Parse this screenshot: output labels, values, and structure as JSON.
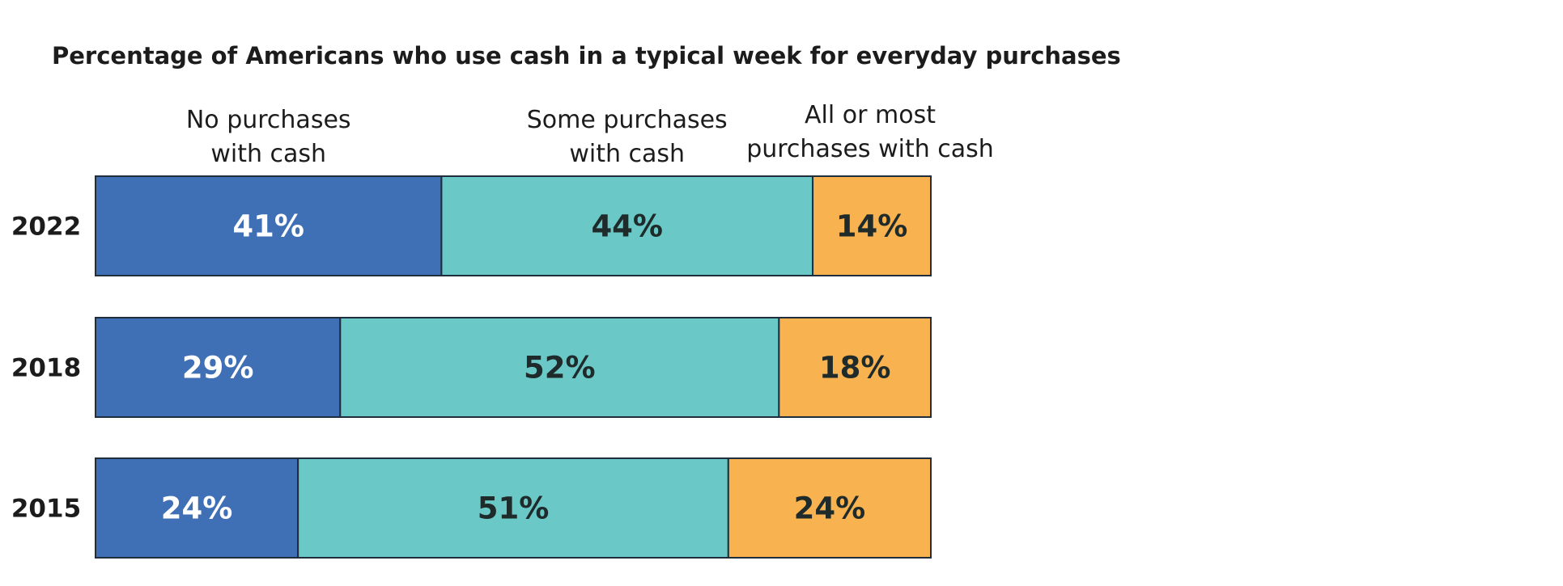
{
  "colors": {
    "no_cash": "#3f6fb5",
    "some_cash": "#6ac8c6",
    "most_cash": "#f8b24f",
    "bar_outline": "#1f2d3d",
    "label_light": "#ffffff",
    "label_dark": "#1f2a2a"
  },
  "chart_data": {
    "type": "bar",
    "orientation": "horizontal",
    "stacked": true,
    "title": "Percentage of Americans who use cash in a typical week for everyday purchases",
    "categories": [
      "2022",
      "2018",
      "2015"
    ],
    "series": [
      {
        "name": "No purchases with cash",
        "name_lines": [
          "No purchases",
          "with cash"
        ],
        "values": [
          41,
          29,
          24
        ],
        "labels": [
          "41%",
          "29%",
          "24%"
        ]
      },
      {
        "name": "Some purchases with cash",
        "name_lines": [
          "Some purchases",
          "with cash"
        ],
        "values": [
          44,
          52,
          51
        ],
        "labels": [
          "44%",
          "52%",
          "51%"
        ]
      },
      {
        "name": "All or most purchases with cash",
        "name_lines": [
          "All or most",
          "purchases with cash"
        ],
        "values": [
          14,
          18,
          24
        ],
        "labels": [
          "14%",
          "18%",
          "24%"
        ]
      }
    ],
    "legend": "top",
    "grid": false
  }
}
